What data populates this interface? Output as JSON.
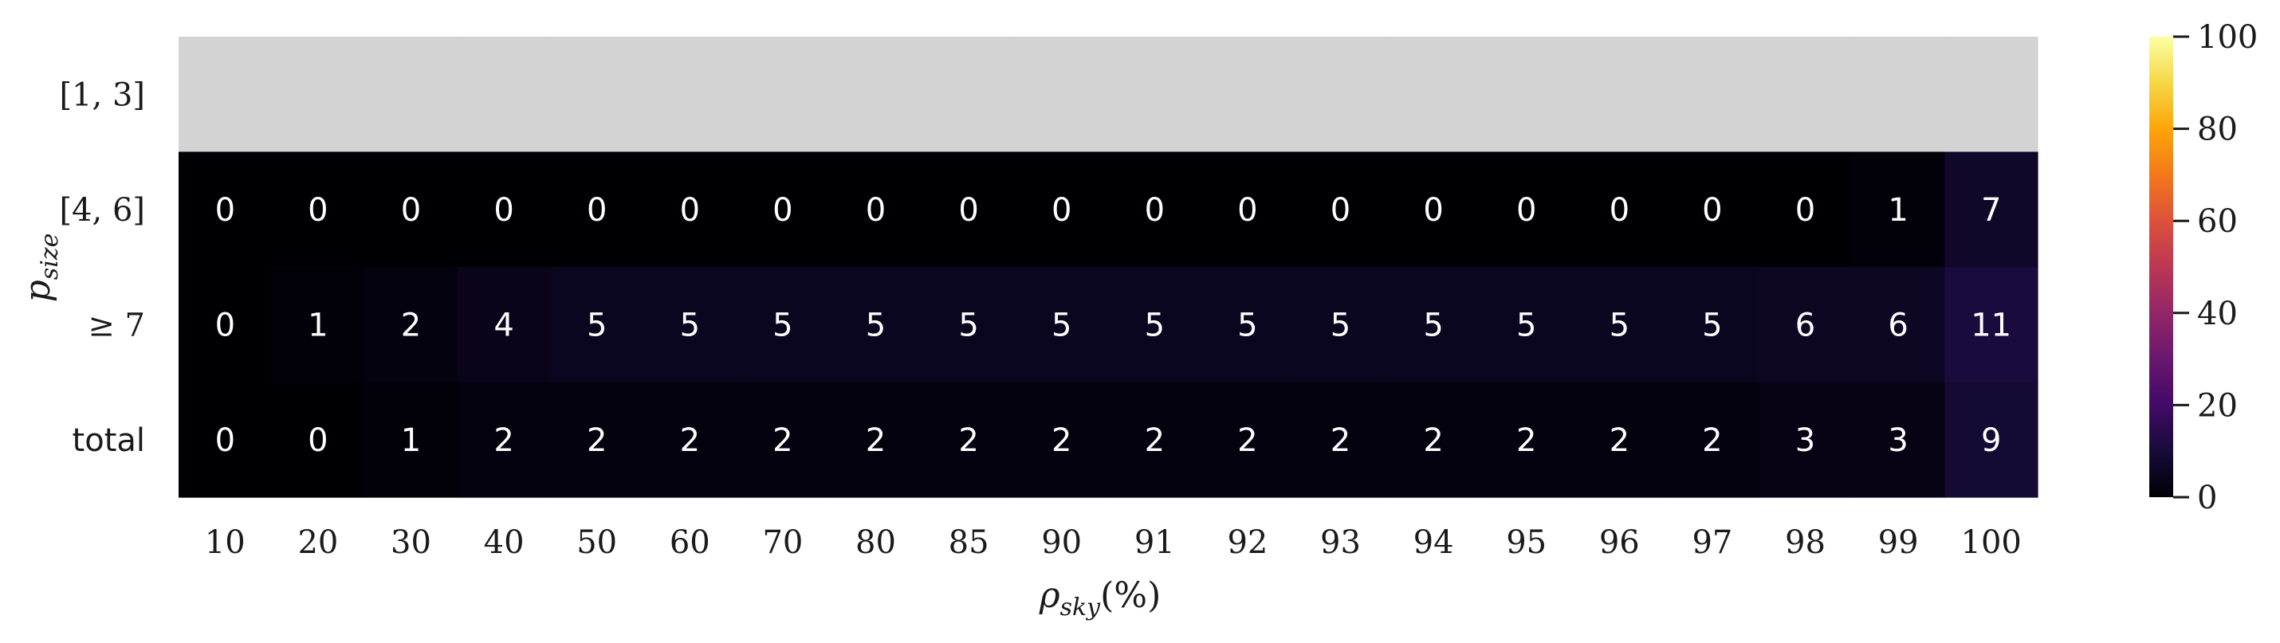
{
  "chart_data": {
    "type": "heatmap",
    "colormap": "inferno",
    "missing_color": "#d3d3d3",
    "x": [
      "10",
      "20",
      "30",
      "40",
      "50",
      "60",
      "70",
      "80",
      "85",
      "90",
      "91",
      "92",
      "93",
      "94",
      "95",
      "96",
      "97",
      "98",
      "99",
      "100"
    ],
    "y": [
      "[1, 3]",
      "[4, 6]",
      "≥ 7",
      "total"
    ],
    "values": [
      [
        null,
        null,
        null,
        null,
        null,
        null,
        null,
        null,
        null,
        null,
        null,
        null,
        null,
        null,
        null,
        null,
        null,
        null,
        null,
        null
      ],
      [
        0,
        0,
        0,
        0,
        0,
        0,
        0,
        0,
        0,
        0,
        0,
        0,
        0,
        0,
        0,
        0,
        0,
        0,
        1,
        7
      ],
      [
        0,
        1,
        2,
        4,
        5,
        5,
        5,
        5,
        5,
        5,
        5,
        5,
        5,
        5,
        5,
        5,
        5,
        6,
        6,
        11
      ],
      [
        0,
        0,
        1,
        2,
        2,
        2,
        2,
        2,
        2,
        2,
        2,
        2,
        2,
        2,
        2,
        2,
        2,
        3,
        3,
        9
      ]
    ],
    "xlabel": {
      "main": "ρ",
      "sub": "sky",
      "suffix": "(%)"
    },
    "ylabel": {
      "main": "p",
      "sub": "size"
    },
    "colorbar": {
      "range": [
        0,
        100
      ],
      "ticks": [
        0,
        20,
        40,
        60,
        80,
        100
      ]
    }
  }
}
